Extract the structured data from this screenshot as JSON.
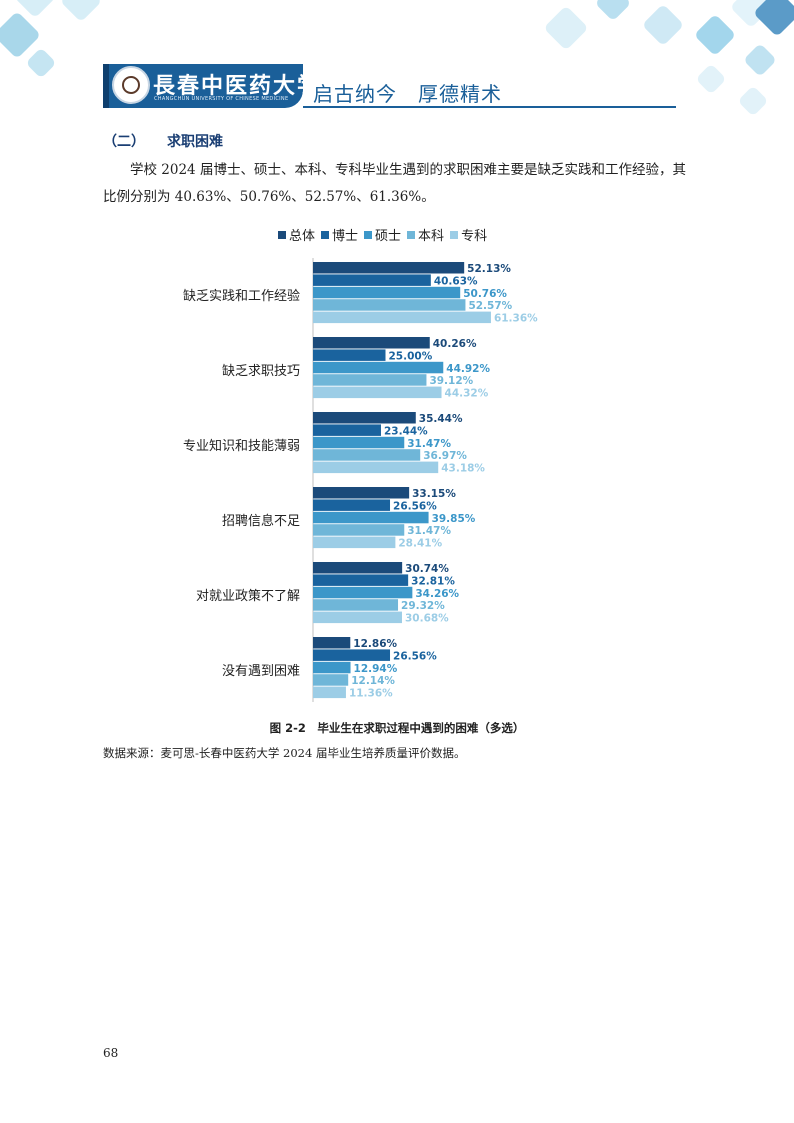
{
  "header": {
    "university_name": "長春中医药大学",
    "university_name_en": "CHANGCHUN UNIVERSITY OF CHINESE MEDICINE",
    "motto": "启古纳今　厚德精术"
  },
  "section": {
    "number": "（二）",
    "title": "求职困难"
  },
  "paragraph": "学校 2024 届博士、硕士、本科、专科毕业生遇到的求职困难主要是缺乏实践和工作经验，其比例分别为 40.63%、50.76%、52.57%、61.36%。",
  "chart_data": {
    "type": "bar",
    "orientation": "horizontal",
    "categories": [
      "缺乏实践和工作经验",
      "缺乏求职技巧",
      "专业知识和技能薄弱",
      "招聘信息不足",
      "对就业政策不了解",
      "没有遇到困难"
    ],
    "series": [
      {
        "name": "总体",
        "color": "#1b4a7a",
        "values": [
          52.13,
          40.26,
          35.44,
          33.15,
          30.74,
          12.86
        ],
        "labels": [
          "52.13%",
          "40.26%",
          "35.44%",
          "33.15%",
          "30.74%",
          "12.86%"
        ]
      },
      {
        "name": "博士",
        "color": "#1a639e",
        "values": [
          40.63,
          25.0,
          23.44,
          26.56,
          32.81,
          26.56
        ],
        "labels": [
          "40.63%",
          "25.00%",
          "23.44%",
          "26.56%",
          "32.81%",
          "26.56%"
        ]
      },
      {
        "name": "硕士",
        "color": "#3c97c9",
        "values": [
          50.76,
          44.92,
          31.47,
          39.85,
          34.26,
          12.94
        ],
        "labels": [
          "50.76%",
          "44.92%",
          "31.47%",
          "39.85%",
          "34.26%",
          "12.94%"
        ]
      },
      {
        "name": "本科",
        "color": "#6fb6d8",
        "values": [
          52.57,
          39.12,
          36.97,
          31.47,
          29.32,
          12.14
        ],
        "labels": [
          "52.57%",
          "39.12%",
          "36.97%",
          "31.47%",
          "29.32%",
          "12.14%"
        ]
      },
      {
        "name": "专科",
        "color": "#9ccde6",
        "values": [
          61.36,
          44.32,
          43.18,
          28.41,
          30.68,
          11.36
        ],
        "labels": [
          "61.36%",
          "44.32%",
          "43.18%",
          "28.41%",
          "30.68%",
          "11.36%"
        ]
      }
    ],
    "caption": "图 2-2　毕业生在求职过程中遇到的困难（多选）",
    "legend_position": "top-center",
    "grid": false
  },
  "source": "数据来源：麦可思-长春中医药大学 2024 届毕业生培养质量评价数据。",
  "page_number": "68",
  "colors": {
    "brand": "#1a5f99",
    "title": "#1a3e73",
    "deco_light": "#d4ecf5",
    "deco_mid": "#9fd2e7"
  }
}
